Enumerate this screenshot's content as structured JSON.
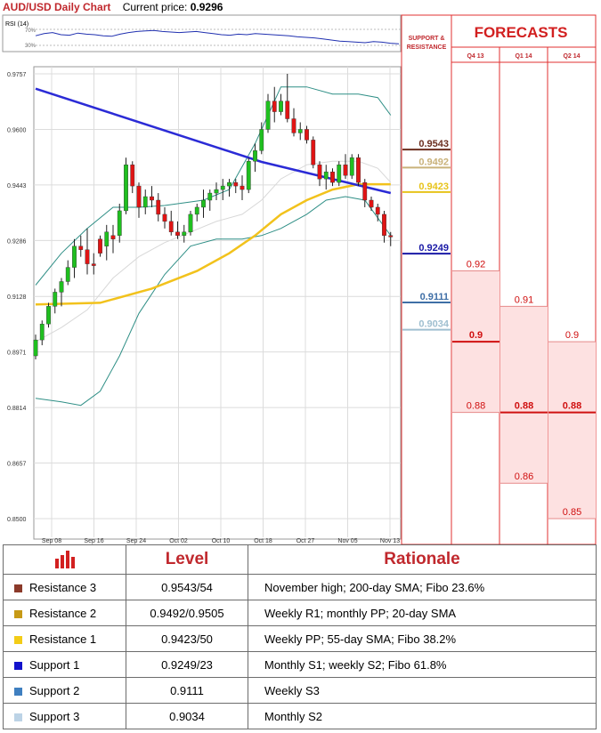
{
  "header": {
    "title": "AUD/USD Daily Chart",
    "price_label": "Current price:",
    "price_value": "0.9296"
  },
  "rsi": {
    "label": "RSI (14)",
    "upper": "70%",
    "lower": "30%"
  },
  "chart_data": {
    "type": "candlestick",
    "y_axis_ticks": [
      "0.9757",
      "0.9600",
      "0.9443",
      "0.9286",
      "0.9128",
      "0.8971",
      "0.8814",
      "0.8657",
      "0.8500"
    ],
    "ylim": [
      0.85,
      0.9757
    ],
    "x_tick_labels": [
      "Sep 08",
      "Sep 16",
      "Sep 24",
      "Oct 02",
      "Oct 10",
      "Oct 18",
      "Oct 27",
      "Nov 05",
      "Nov 13"
    ],
    "candles": [
      [
        0.896,
        0.902,
        0.895,
        0.9005
      ],
      [
        0.9005,
        0.906,
        0.899,
        0.905
      ],
      [
        0.905,
        0.911,
        0.904,
        0.91
      ],
      [
        0.91,
        0.915,
        0.908,
        0.914
      ],
      [
        0.914,
        0.918,
        0.91,
        0.917
      ],
      [
        0.917,
        0.923,
        0.916,
        0.921
      ],
      [
        0.921,
        0.929,
        0.918,
        0.927
      ],
      [
        0.927,
        0.93,
        0.924,
        0.926
      ],
      [
        0.926,
        0.932,
        0.919,
        0.922
      ],
      [
        0.922,
        0.925,
        0.919,
        0.9215
      ],
      [
        0.929,
        0.93,
        0.924,
        0.925
      ],
      [
        0.927,
        0.933,
        0.923,
        0.931
      ],
      [
        0.93,
        0.933,
        0.925,
        0.929
      ],
      [
        0.93,
        0.939,
        0.928,
        0.937
      ],
      [
        0.937,
        0.952,
        0.936,
        0.95
      ],
      [
        0.95,
        0.951,
        0.942,
        0.944
      ],
      [
        0.944,
        0.945,
        0.935,
        0.938
      ],
      [
        0.938,
        0.943,
        0.936,
        0.941
      ],
      [
        0.941,
        0.944,
        0.938,
        0.94
      ],
      [
        0.94,
        0.942,
        0.934,
        0.936
      ],
      [
        0.936,
        0.938,
        0.932,
        0.934
      ],
      [
        0.934,
        0.937,
        0.93,
        0.931
      ],
      [
        0.931,
        0.934,
        0.929,
        0.93
      ],
      [
        0.93,
        0.933,
        0.928,
        0.931
      ],
      [
        0.931,
        0.937,
        0.93,
        0.936
      ],
      [
        0.936,
        0.939,
        0.934,
        0.938
      ],
      [
        0.938,
        0.943,
        0.935,
        0.94
      ],
      [
        0.94,
        0.943,
        0.937,
        0.942
      ],
      [
        0.942,
        0.945,
        0.94,
        0.943
      ],
      [
        0.943,
        0.946,
        0.94,
        0.944
      ],
      [
        0.944,
        0.946,
        0.941,
        0.945
      ],
      [
        0.945,
        0.946,
        0.942,
        0.944
      ],
      [
        0.944,
        0.947,
        0.94,
        0.943
      ],
      [
        0.943,
        0.952,
        0.942,
        0.951
      ],
      [
        0.951,
        0.956,
        0.948,
        0.954
      ],
      [
        0.954,
        0.962,
        0.953,
        0.96
      ],
      [
        0.96,
        0.97,
        0.959,
        0.968
      ],
      [
        0.968,
        0.972,
        0.962,
        0.965
      ],
      [
        0.965,
        0.97,
        0.964,
        0.968
      ],
      [
        0.968,
        0.9757,
        0.962,
        0.963
      ],
      [
        0.963,
        0.966,
        0.958,
        0.959
      ],
      [
        0.959,
        0.962,
        0.957,
        0.96
      ],
      [
        0.96,
        0.961,
        0.956,
        0.957
      ],
      [
        0.957,
        0.958,
        0.949,
        0.95
      ],
      [
        0.95,
        0.951,
        0.944,
        0.946
      ],
      [
        0.946,
        0.95,
        0.943,
        0.948
      ],
      [
        0.948,
        0.949,
        0.944,
        0.945
      ],
      [
        0.945,
        0.951,
        0.944,
        0.95
      ],
      [
        0.95,
        0.953,
        0.946,
        0.947
      ],
      [
        0.947,
        0.953,
        0.946,
        0.952
      ],
      [
        0.952,
        0.953,
        0.944,
        0.945
      ],
      [
        0.945,
        0.946,
        0.938,
        0.94
      ],
      [
        0.94,
        0.941,
        0.937,
        0.938
      ],
      [
        0.938,
        0.939,
        0.934,
        0.936
      ],
      [
        0.936,
        0.937,
        0.928,
        0.93
      ],
      [
        0.93,
        0.931,
        0.927,
        0.9296
      ]
    ],
    "lines": {
      "sma200": [
        [
          0,
          0.9715
        ],
        [
          35,
          0.9508
        ],
        [
          55,
          0.942
        ]
      ],
      "sma55": [
        [
          0,
          0.9105
        ],
        [
          10,
          0.911
        ],
        [
          18,
          0.915
        ],
        [
          25,
          0.92
        ],
        [
          30,
          0.925
        ],
        [
          34,
          0.93
        ],
        [
          38,
          0.936
        ],
        [
          42,
          0.94
        ],
        [
          46,
          0.943
        ],
        [
          50,
          0.9445
        ],
        [
          55,
          0.9445
        ]
      ],
      "bb_upper": [
        [
          0,
          0.916
        ],
        [
          4,
          0.925
        ],
        [
          8,
          0.932
        ],
        [
          12,
          0.938
        ],
        [
          16,
          0.938
        ],
        [
          20,
          0.9385
        ],
        [
          26,
          0.94
        ],
        [
          30,
          0.943
        ],
        [
          34,
          0.956
        ],
        [
          38,
          0.972
        ],
        [
          42,
          0.972
        ],
        [
          46,
          0.97
        ],
        [
          50,
          0.97
        ],
        [
          53,
          0.969
        ],
        [
          55,
          0.964
        ]
      ],
      "bb_lower": [
        [
          0,
          0.884
        ],
        [
          4,
          0.883
        ],
        [
          7,
          0.882
        ],
        [
          10,
          0.886
        ],
        [
          13,
          0.896
        ],
        [
          16,
          0.908
        ],
        [
          20,
          0.919
        ],
        [
          24,
          0.927
        ],
        [
          28,
          0.929
        ],
        [
          32,
          0.929
        ],
        [
          35,
          0.93
        ],
        [
          38,
          0.932
        ],
        [
          42,
          0.936
        ],
        [
          45,
          0.94
        ],
        [
          48,
          0.941
        ],
        [
          51,
          0.94
        ],
        [
          53,
          0.935
        ],
        [
          55,
          0.93
        ]
      ],
      "bb_mid": [
        [
          0,
          0.9
        ],
        [
          4,
          0.904
        ],
        [
          8,
          0.909
        ],
        [
          12,
          0.918
        ],
        [
          16,
          0.924
        ],
        [
          20,
          0.928
        ],
        [
          24,
          0.931
        ],
        [
          28,
          0.934
        ],
        [
          32,
          0.936
        ],
        [
          35,
          0.94
        ],
        [
          38,
          0.946
        ],
        [
          42,
          0.95
        ],
        [
          46,
          0.951
        ],
        [
          50,
          0.951
        ],
        [
          53,
          0.949
        ],
        [
          55,
          0.945
        ]
      ]
    },
    "rsi_series": [
      58,
      62,
      64,
      60,
      59,
      63,
      61,
      60,
      58,
      57,
      61,
      64,
      66,
      67,
      68,
      66,
      65,
      64,
      65,
      66,
      64,
      62,
      60,
      59,
      61,
      60,
      62,
      61,
      60,
      59,
      58,
      56,
      55,
      54,
      52,
      50,
      48,
      47,
      46,
      45,
      47,
      46,
      44,
      43
    ]
  },
  "levels_panel": {
    "header_line1": "SUPPORT &",
    "header_line2": "RESISTANCE",
    "levels": [
      {
        "value": "0.9543",
        "price": 0.9543,
        "color": "#6b2e1f"
      },
      {
        "value": "0.9492",
        "price": 0.9492,
        "color": "#c9b27a"
      },
      {
        "value": "0.9423",
        "price": 0.9423,
        "color": "#e7c31a"
      },
      {
        "value": "0.9249",
        "price": 0.9249,
        "color": "#1a1aa6"
      },
      {
        "value": "0.9111",
        "price": 0.9111,
        "color": "#3f6fa6"
      },
      {
        "value": "0.9034",
        "price": 0.9034,
        "color": "#9fbfd0"
      }
    ]
  },
  "forecasts": {
    "title": "FORECASTS",
    "columns": [
      {
        "label": "Q4 13",
        "labels": [
          "0.92",
          "0.9",
          "0.88"
        ],
        "values": [
          0.92,
          0.9,
          0.88
        ]
      },
      {
        "label": "Q1 14",
        "labels": [
          "0.91",
          "0.88",
          "0.86"
        ],
        "values": [
          0.91,
          0.88,
          0.86
        ]
      },
      {
        "label": "Q2 14",
        "labels": [
          "0.9",
          "0.88",
          "0.85"
        ],
        "values": [
          0.9,
          0.88,
          0.85
        ]
      }
    ]
  },
  "table": {
    "col_level": "Level",
    "col_rationale": "Rationale",
    "rows": [
      {
        "name": "Resistance 3",
        "color": "#8b3a2a",
        "value": "0.9543/54",
        "rationale": "November high; 200-day SMA; Fibo 23.6%"
      },
      {
        "name": "Resistance 2",
        "color": "#c79a16",
        "value": "0.9492/0.9505",
        "rationale": "Weekly R1; monthly PP; 20-day SMA"
      },
      {
        "name": "Resistance 1",
        "color": "#f3cc17",
        "value": "0.9423/50",
        "rationale": "Weekly PP; 55-day SMA; Fibo 38.2%"
      },
      {
        "name": "Support 1",
        "color": "#1212cc",
        "value": "0.9249/23",
        "rationale": "Monthly S1; weekly S2; Fibo 61.8%"
      },
      {
        "name": "Support 2",
        "color": "#3f7fc0",
        "value": "0.9111",
        "rationale": "Weekly S3"
      },
      {
        "name": "Support 3",
        "color": "#bcd3e6",
        "value": "0.9034",
        "rationale": "Monthly S2"
      }
    ]
  }
}
